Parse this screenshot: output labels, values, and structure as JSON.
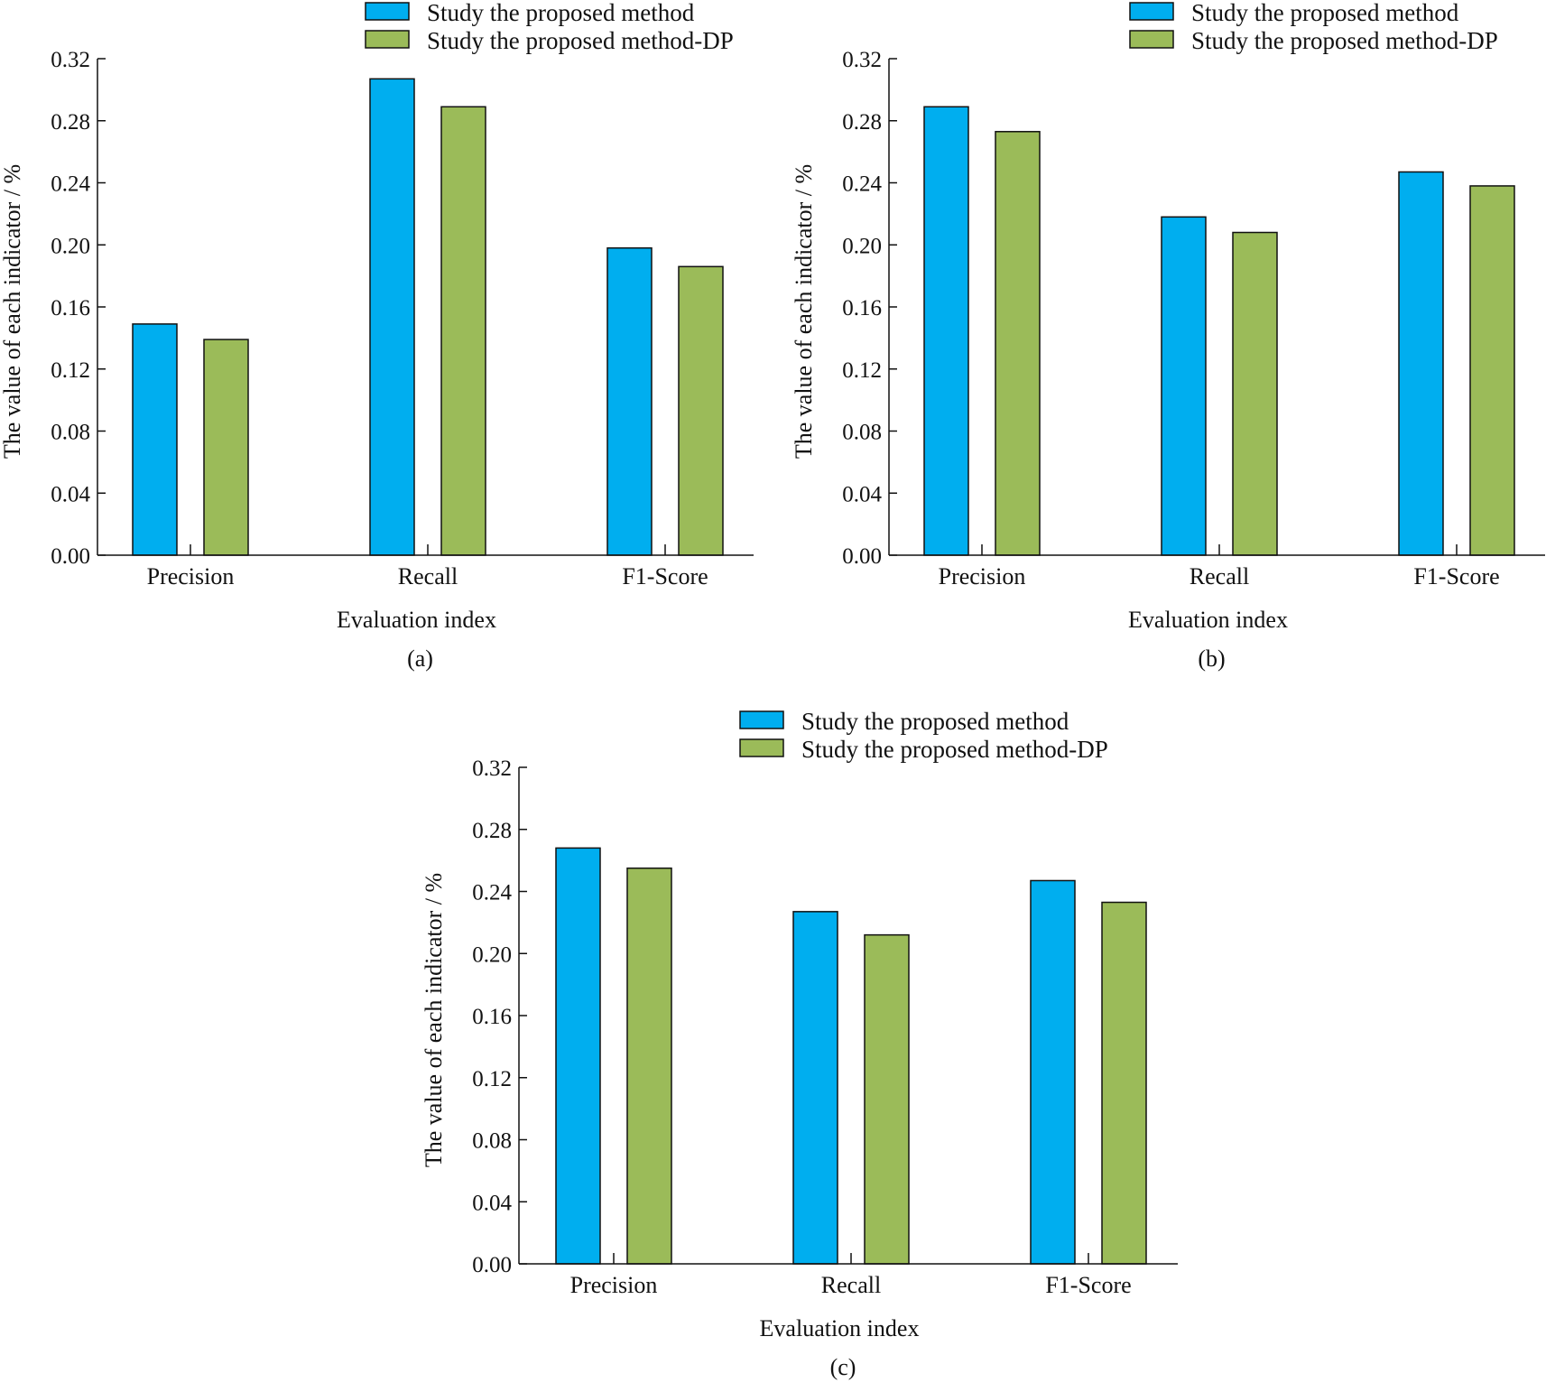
{
  "colors": {
    "series1": "#00AEEF",
    "series2": "#9BBB59",
    "axis": "#111111"
  },
  "chart_data": [
    {
      "type": "bar",
      "panel_label": "(a)",
      "categories": [
        "Precision",
        "Recall",
        "F1-Score"
      ],
      "series": [
        {
          "name": "Study the proposed method",
          "values": [
            0.149,
            0.307,
            0.198
          ]
        },
        {
          "name": "Study the proposed method-DP",
          "values": [
            0.139,
            0.289,
            0.186
          ]
        }
      ],
      "xlabel": "Evaluation index",
      "ylabel": "The value of each indicator / %",
      "ylim": [
        0,
        0.32
      ],
      "yticks": [
        "0.00",
        "0.04",
        "0.08",
        "0.12",
        "0.16",
        "0.20",
        "0.24",
        "0.28",
        "0.32"
      ],
      "legend_position": "top"
    },
    {
      "type": "bar",
      "panel_label": "(b)",
      "categories": [
        "Precision",
        "Recall",
        "F1-Score"
      ],
      "series": [
        {
          "name": "Study the proposed method",
          "values": [
            0.289,
            0.218,
            0.247
          ]
        },
        {
          "name": "Study the proposed method-DP",
          "values": [
            0.273,
            0.208,
            0.238
          ]
        }
      ],
      "xlabel": "Evaluation index",
      "ylabel": "The value of each indicator / %",
      "ylim": [
        0,
        0.32
      ],
      "yticks": [
        "0.00",
        "0.04",
        "0.08",
        "0.12",
        "0.16",
        "0.20",
        "0.24",
        "0.28",
        "0.32"
      ],
      "legend_position": "top-right"
    },
    {
      "type": "bar",
      "panel_label": "(c)",
      "categories": [
        "Precision",
        "Recall",
        "F1-Score"
      ],
      "series": [
        {
          "name": "Study the proposed method",
          "values": [
            0.268,
            0.227,
            0.247
          ]
        },
        {
          "name": "Study the proposed method-DP",
          "values": [
            0.255,
            0.212,
            0.233
          ]
        }
      ],
      "xlabel": "Evaluation index",
      "ylabel": "The value of each indicator / %",
      "ylim": [
        0,
        0.32
      ],
      "yticks": [
        "0.00",
        "0.04",
        "0.08",
        "0.12",
        "0.16",
        "0.20",
        "0.24",
        "0.28",
        "0.32"
      ],
      "legend_position": "top"
    }
  ]
}
